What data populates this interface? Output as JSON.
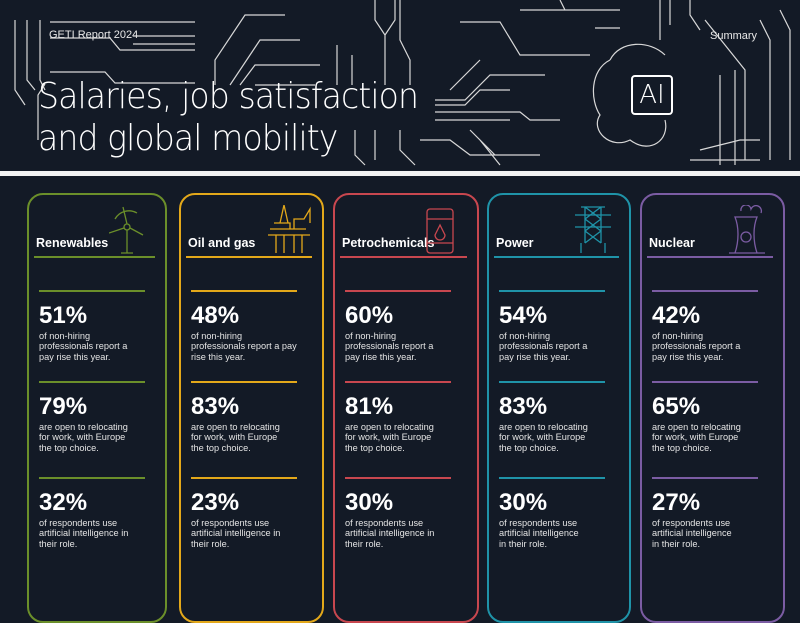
{
  "header": {
    "report": "GETI Report 2024",
    "summary": "Summary",
    "title_line1": "Salaries, job satisfaction",
    "title_line2": "and global mobility",
    "ai_label": "AI"
  },
  "cards": [
    {
      "name": "Renewables",
      "color": "#6b8f2a",
      "icon": "wind-turbine-icon",
      "stats": [
        {
          "value": "51%",
          "text": "of non-hiring\nprofessionals report a\npay rise this year."
        },
        {
          "value": "79%",
          "text": "are open to relocating\nfor work, with Europe\nthe top choice."
        },
        {
          "value": "32%",
          "text": "of respondents use\nartificial intelligence in\ntheir role."
        }
      ]
    },
    {
      "name": "Oil and gas",
      "color": "#e3a81a",
      "icon": "oil-rig-icon",
      "stats": [
        {
          "value": "48%",
          "text": "of non-hiring\nprofessionals report a pay\nrise this year."
        },
        {
          "value": "83%",
          "text": "are open to relocating\nfor work, with Europe\nthe top choice."
        },
        {
          "value": "23%",
          "text": "of respondents use\nartificial intelligence in\ntheir role."
        }
      ]
    },
    {
      "name": "Petrochemicals",
      "color": "#c8474f",
      "icon": "oil-barrel-icon",
      "stats": [
        {
          "value": "60%",
          "text": "of non-hiring\nprofessionals report a\npay rise this year."
        },
        {
          "value": "81%",
          "text": "are open to relocating\nfor work, with Europe\nthe top choice."
        },
        {
          "value": "30%",
          "text": "of respondents use\nartificial intelligence in\ntheir role."
        }
      ]
    },
    {
      "name": "Power",
      "color": "#1f93a8",
      "icon": "pylon-icon",
      "stats": [
        {
          "value": "54%",
          "text": "of non-hiring\nprofessionals report a\npay rise this year."
        },
        {
          "value": "83%",
          "text": "are open to relocating\nfor work, with Europe\nthe top choice."
        },
        {
          "value": "30%",
          "text": "of respondents use\nartificial intelligence\nin their role."
        }
      ]
    },
    {
      "name": "Nuclear",
      "color": "#7b5ca3",
      "icon": "cooling-tower-icon",
      "stats": [
        {
          "value": "42%",
          "text": "of non-hiring\nprofessionals report a\npay rise this year."
        },
        {
          "value": "65%",
          "text": "are open to relocating\nfor work, with Europe\nthe top choice."
        },
        {
          "value": "27%",
          "text": "of respondents use\nartificial intelligence\nin their role."
        }
      ]
    }
  ]
}
